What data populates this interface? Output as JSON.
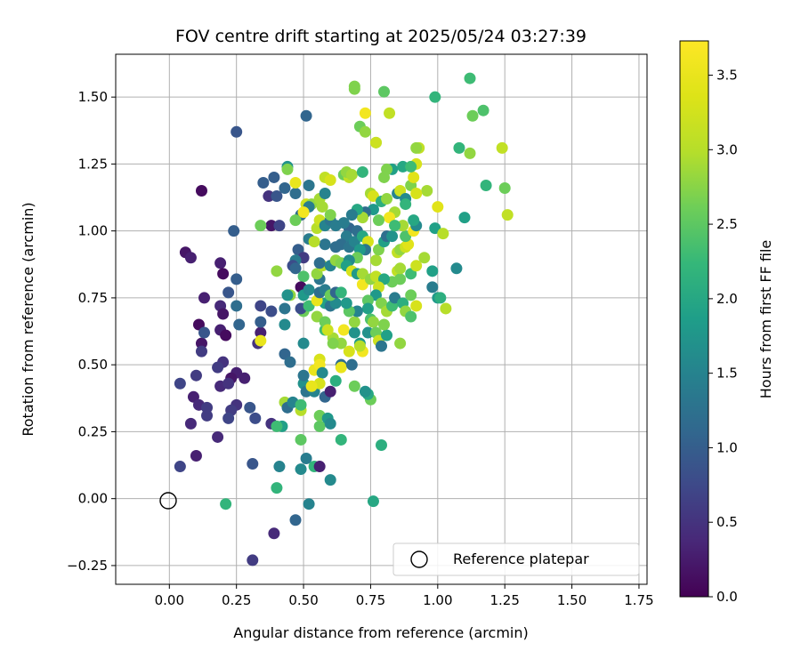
{
  "chart_data": {
    "type": "scatter",
    "title": "FOV centre drift starting at 2025/05/24 03:27:39",
    "xlabel": "Angular distance from reference (arcmin)",
    "ylabel": "Rotation from reference (arcmin)",
    "xlim": [
      -0.2,
      1.78
    ],
    "ylim": [
      -0.32,
      1.66
    ],
    "xticks": [
      0.0,
      0.25,
      0.5,
      0.75,
      1.0,
      1.25,
      1.5,
      1.75
    ],
    "xtick_labels": [
      "0.00",
      "0.25",
      "0.50",
      "0.75",
      "1.00",
      "1.25",
      "1.50",
      "1.75"
    ],
    "yticks": [
      -0.25,
      0.0,
      0.25,
      0.5,
      0.75,
      1.0,
      1.25,
      1.5
    ],
    "ytick_labels": [
      "−0.25",
      "0.00",
      "0.25",
      "0.50",
      "0.75",
      "1.00",
      "1.25",
      "1.50"
    ],
    "grid": true,
    "colorbar": {
      "label": "Hours from first FF file",
      "min": 0.0,
      "max": 3.73,
      "colormap": "viridis",
      "ticks": [
        0.0,
        0.5,
        1.0,
        1.5,
        2.0,
        2.5,
        3.0,
        3.5
      ],
      "tick_labels": [
        "0.0",
        "0.5",
        "1.0",
        "1.5",
        "2.0",
        "2.5",
        "3.0",
        "3.5"
      ]
    },
    "legend": {
      "placement": "lower-right",
      "entries": [
        {
          "label": "Reference platepar",
          "marker": "open-circle"
        }
      ]
    },
    "reference_point": {
      "x": 0.0,
      "y": 0.0
    },
    "points": [
      [
        0.12,
        1.15,
        0.1
      ],
      [
        0.06,
        0.92,
        0.2
      ],
      [
        0.08,
        0.9,
        0.3
      ],
      [
        0.19,
        0.88,
        0.3
      ],
      [
        0.2,
        0.84,
        0.1
      ],
      [
        0.13,
        0.75,
        0.3
      ],
      [
        0.19,
        0.72,
        0.4
      ],
      [
        0.2,
        0.69,
        0.2
      ],
      [
        0.11,
        0.65,
        0.1
      ],
      [
        0.19,
        0.63,
        0.3
      ],
      [
        0.21,
        0.61,
        0.1
      ],
      [
        0.12,
        0.58,
        0.2
      ],
      [
        0.12,
        0.55,
        0.6
      ],
      [
        0.2,
        0.51,
        0.5
      ],
      [
        0.18,
        0.49,
        0.6
      ],
      [
        0.04,
        0.43,
        0.7
      ],
      [
        0.09,
        0.38,
        0.3
      ],
      [
        0.11,
        0.35,
        0.4
      ],
      [
        0.14,
        0.31,
        0.6
      ],
      [
        0.08,
        0.28,
        0.4
      ],
      [
        0.19,
        0.42,
        0.4
      ],
      [
        0.18,
        0.23,
        0.4
      ],
      [
        0.1,
        0.16,
        0.3
      ],
      [
        0.04,
        0.12,
        0.7
      ],
      [
        0.1,
        0.46,
        0.6
      ],
      [
        0.13,
        0.62,
        0.9
      ],
      [
        0.14,
        0.34,
        0.6
      ],
      [
        0.25,
        0.47,
        0.3
      ],
      [
        0.23,
        0.45,
        0.2
      ],
      [
        0.22,
        0.43,
        0.5
      ],
      [
        0.25,
        0.35,
        0.5
      ],
      [
        0.28,
        0.45,
        0.3
      ],
      [
        0.23,
        0.33,
        0.6
      ],
      [
        0.22,
        0.3,
        0.7
      ],
      [
        0.3,
        0.34,
        0.9
      ],
      [
        0.32,
        0.3,
        0.8
      ],
      [
        0.25,
        1.37,
        0.9
      ],
      [
        0.24,
        1.0,
        1.0
      ],
      [
        0.22,
        0.77,
        0.9
      ],
      [
        0.25,
        0.82,
        1.0
      ],
      [
        0.25,
        0.72,
        1.2
      ],
      [
        0.26,
        0.65,
        1.1
      ],
      [
        0.33,
        0.58,
        0.5
      ],
      [
        0.34,
        0.62,
        0.3
      ],
      [
        0.34,
        0.59,
        3.5
      ],
      [
        0.34,
        0.66,
        1.0
      ],
      [
        0.34,
        0.72,
        0.7
      ],
      [
        0.38,
        0.7,
        0.8
      ],
      [
        0.31,
        0.13,
        0.9
      ],
      [
        0.38,
        0.28,
        0.5
      ],
      [
        0.39,
        -0.13,
        0.4
      ],
      [
        0.31,
        -0.23,
        0.6
      ],
      [
        0.35,
        1.18,
        1.0
      ],
      [
        0.37,
        1.13,
        0.5
      ],
      [
        0.39,
        1.2,
        1.0
      ],
      [
        0.4,
        1.13,
        0.9
      ],
      [
        0.38,
        1.02,
        0.2
      ],
      [
        0.34,
        1.02,
        2.6
      ],
      [
        0.41,
        1.02,
        0.7
      ],
      [
        0.43,
        1.16,
        1.1
      ],
      [
        0.44,
        1.24,
        1.7
      ],
      [
        0.44,
        1.23,
        2.7
      ],
      [
        0.47,
        1.14,
        1.2
      ],
      [
        0.47,
        1.18,
        3.5
      ],
      [
        0.51,
        1.43,
        1.1
      ],
      [
        0.52,
        1.17,
        1.3
      ],
      [
        0.51,
        1.1,
        3.2
      ],
      [
        0.53,
        1.1,
        2.8
      ],
      [
        0.52,
        1.09,
        1.4
      ],
      [
        0.49,
        1.06,
        1.2
      ],
      [
        0.5,
        1.07,
        3.6
      ],
      [
        0.47,
        1.04,
        2.6
      ],
      [
        0.48,
        0.93,
        1.0
      ],
      [
        0.5,
        0.9,
        0.6
      ],
      [
        0.47,
        0.89,
        1.4
      ],
      [
        0.46,
        0.87,
        0.8
      ],
      [
        0.47,
        0.86,
        1.1
      ],
      [
        0.52,
        0.97,
        1.4
      ],
      [
        0.5,
        0.83,
        2.4
      ],
      [
        0.4,
        0.85,
        2.8
      ],
      [
        0.45,
        0.76,
        2.8
      ],
      [
        0.44,
        0.76,
        1.7
      ],
      [
        0.49,
        0.79,
        0.1
      ],
      [
        0.5,
        0.76,
        1.8
      ],
      [
        0.5,
        0.7,
        2.6
      ],
      [
        0.49,
        0.71,
        0.8
      ],
      [
        0.52,
        0.72,
        2.3
      ],
      [
        0.52,
        0.78,
        1.6
      ],
      [
        0.43,
        0.71,
        1.3
      ],
      [
        0.43,
        0.65,
        1.6
      ],
      [
        0.43,
        0.54,
        1.1
      ],
      [
        0.45,
        0.51,
        1.2
      ],
      [
        0.5,
        0.58,
        1.6
      ],
      [
        0.43,
        0.36,
        2.9
      ],
      [
        0.44,
        0.34,
        1.2
      ],
      [
        0.46,
        0.36,
        1.5
      ],
      [
        0.49,
        0.33,
        3.0
      ],
      [
        0.5,
        0.43,
        1.7
      ],
      [
        0.5,
        0.46,
        1.3
      ],
      [
        0.51,
        0.4,
        1.3
      ],
      [
        0.49,
        0.35,
        2.3
      ],
      [
        0.42,
        0.27,
        1.9
      ],
      [
        0.4,
        0.27,
        2.3
      ],
      [
        0.49,
        0.22,
        2.5
      ],
      [
        0.51,
        0.15,
        1.4
      ],
      [
        0.49,
        0.11,
        1.6
      ],
      [
        0.54,
        0.12,
        2.2
      ],
      [
        0.41,
        0.12,
        1.5
      ],
      [
        0.4,
        0.04,
        2.2
      ],
      [
        0.47,
        -0.08,
        1.1
      ],
      [
        0.52,
        -0.02,
        1.5
      ],
      [
        0.56,
        0.12,
        0.3
      ],
      [
        0.6,
        0.07,
        1.6
      ],
      [
        0.56,
        0.27,
        2.5
      ],
      [
        0.56,
        0.31,
        2.6
      ],
      [
        0.58,
        0.38,
        1.1
      ],
      [
        0.59,
        0.3,
        1.8
      ],
      [
        0.56,
        0.52,
        3.3
      ],
      [
        0.54,
        0.48,
        3.5
      ],
      [
        0.56,
        0.5,
        3.6
      ],
      [
        0.57,
        0.47,
        1.6
      ],
      [
        0.54,
        0.4,
        1.5
      ],
      [
        0.56,
        0.43,
        3.3
      ],
      [
        0.53,
        0.42,
        3.5
      ],
      [
        0.6,
        0.4,
        0.3
      ],
      [
        0.6,
        0.28,
        1.6
      ],
      [
        0.62,
        0.44,
        2.1
      ],
      [
        0.64,
        0.5,
        1.2
      ],
      [
        0.64,
        0.49,
        3.5
      ],
      [
        0.64,
        0.22,
        2.2
      ],
      [
        0.68,
        0.5,
        1.2
      ],
      [
        0.67,
        0.55,
        3.3
      ],
      [
        0.64,
        0.58,
        2.8
      ],
      [
        0.65,
        0.63,
        3.6
      ],
      [
        0.61,
        0.6,
        2.9
      ],
      [
        0.58,
        0.63,
        2.3
      ],
      [
        0.55,
        0.68,
        2.8
      ],
      [
        0.58,
        0.66,
        2.6
      ],
      [
        0.59,
        0.63,
        3.2
      ],
      [
        0.61,
        0.58,
        2.7
      ],
      [
        0.58,
        0.73,
        1.9
      ],
      [
        0.6,
        0.72,
        1.3
      ],
      [
        0.62,
        0.73,
        1.6
      ],
      [
        0.55,
        0.74,
        3.5
      ],
      [
        0.56,
        0.77,
        1.2
      ],
      [
        0.58,
        0.78,
        1.4
      ],
      [
        0.6,
        0.76,
        2.6
      ],
      [
        0.62,
        0.77,
        1.1
      ],
      [
        0.64,
        0.77,
        2.2
      ],
      [
        0.56,
        0.82,
        1.3
      ],
      [
        0.55,
        0.84,
        2.8
      ],
      [
        0.57,
        0.87,
        3.0
      ],
      [
        0.56,
        0.88,
        1.2
      ],
      [
        0.6,
        0.87,
        1.5
      ],
      [
        0.62,
        0.89,
        2.8
      ],
      [
        0.64,
        0.88,
        2.7
      ],
      [
        0.62,
        0.94,
        1.2
      ],
      [
        0.58,
        0.95,
        1.3
      ],
      [
        0.54,
        0.96,
        3.0
      ],
      [
        0.55,
        1.01,
        3.0
      ],
      [
        0.56,
        1.04,
        3.2
      ],
      [
        0.58,
        1.02,
        1.5
      ],
      [
        0.6,
        1.04,
        1.3
      ],
      [
        0.62,
        1.02,
        1.4
      ],
      [
        0.6,
        1.06,
        2.7
      ],
      [
        0.57,
        1.09,
        2.9
      ],
      [
        0.56,
        1.12,
        2.9
      ],
      [
        0.58,
        1.14,
        1.5
      ],
      [
        0.58,
        1.2,
        3.1
      ],
      [
        0.6,
        1.19,
        3.3
      ],
      [
        0.65,
        1.21,
        2.6
      ],
      [
        0.67,
        1.2,
        3.1
      ],
      [
        0.66,
        1.22,
        2.8
      ],
      [
        0.68,
        1.21,
        2.9
      ],
      [
        0.72,
        1.22,
        2.2
      ],
      [
        0.69,
        1.53,
        2.7
      ],
      [
        0.69,
        1.54,
        2.7
      ],
      [
        0.71,
        1.39,
        2.6
      ],
      [
        0.73,
        1.44,
        3.6
      ],
      [
        0.73,
        1.37,
        2.8
      ],
      [
        0.77,
        1.33,
        2.7
      ],
      [
        0.77,
        1.33,
        3.2
      ],
      [
        0.8,
        1.52,
        2.5
      ],
      [
        0.82,
        1.44,
        3.1
      ],
      [
        0.83,
        1.23,
        1.9
      ],
      [
        0.8,
        1.2,
        2.7
      ],
      [
        0.81,
        1.23,
        2.7
      ],
      [
        0.75,
        1.14,
        2.9
      ],
      [
        0.76,
        1.13,
        3.3
      ],
      [
        0.79,
        1.11,
        2.1
      ],
      [
        0.81,
        1.12,
        2.8
      ],
      [
        0.85,
        1.14,
        1.5
      ],
      [
        0.87,
        1.24,
        2.0
      ],
      [
        0.86,
        1.15,
        3.2
      ],
      [
        0.88,
        1.12,
        1.6
      ],
      [
        0.9,
        1.17,
        2.7
      ],
      [
        0.91,
        1.2,
        3.4
      ],
      [
        0.92,
        1.25,
        3.3
      ],
      [
        0.93,
        1.31,
        3.1
      ],
      [
        0.92,
        1.31,
        2.8
      ],
      [
        0.9,
        1.24,
        2.3
      ],
      [
        0.96,
        1.15,
        2.9
      ],
      [
        0.92,
        1.14,
        3.3
      ],
      [
        0.88,
        1.1,
        2.2
      ],
      [
        0.84,
        1.07,
        2.9
      ],
      [
        0.82,
        1.05,
        3.6
      ],
      [
        0.78,
        1.04,
        2.6
      ],
      [
        0.76,
        1.08,
        1.8
      ],
      [
        0.73,
        1.07,
        1.2
      ],
      [
        0.72,
        1.05,
        2.9
      ],
      [
        0.7,
        1.08,
        2.0
      ],
      [
        0.68,
        1.06,
        1.4
      ],
      [
        0.67,
        1.01,
        1.1
      ],
      [
        0.65,
        1.03,
        1.4
      ],
      [
        0.66,
        0.98,
        1.4
      ],
      [
        0.64,
        0.95,
        1.2
      ],
      [
        0.67,
        0.94,
        1.3
      ],
      [
        0.69,
        0.96,
        1.5
      ],
      [
        0.7,
        1.0,
        1.2
      ],
      [
        0.72,
        0.98,
        2.0
      ],
      [
        0.74,
        0.96,
        3.3
      ],
      [
        0.73,
        0.93,
        1.3
      ],
      [
        0.71,
        0.93,
        1.8
      ],
      [
        0.7,
        0.9,
        2.6
      ],
      [
        0.67,
        0.89,
        1.6
      ],
      [
        0.66,
        0.87,
        1.9
      ],
      [
        0.68,
        0.85,
        3.3
      ],
      [
        0.7,
        0.84,
        1.8
      ],
      [
        0.72,
        0.8,
        3.6
      ],
      [
        0.72,
        0.84,
        2.9
      ],
      [
        0.75,
        0.82,
        2.8
      ],
      [
        0.77,
        0.83,
        3.1
      ],
      [
        0.77,
        0.89,
        2.9
      ],
      [
        0.78,
        0.93,
        2.7
      ],
      [
        0.8,
        0.96,
        1.9
      ],
      [
        0.81,
        0.98,
        1.2
      ],
      [
        0.83,
        0.98,
        1.7
      ],
      [
        0.85,
        0.92,
        3.1
      ],
      [
        0.86,
        0.93,
        2.8
      ],
      [
        0.88,
        0.94,
        3.2
      ],
      [
        0.89,
        0.95,
        3.4
      ],
      [
        0.88,
        0.98,
        2.4
      ],
      [
        0.91,
        1.0,
        3.6
      ],
      [
        0.92,
        1.02,
        1.6
      ],
      [
        0.91,
        1.04,
        2.0
      ],
      [
        0.87,
        1.02,
        2.9
      ],
      [
        0.84,
        1.02,
        2.3
      ],
      [
        0.85,
        0.85,
        3.1
      ],
      [
        0.86,
        0.82,
        2.6
      ],
      [
        0.86,
        0.86,
        2.9
      ],
      [
        0.83,
        0.81,
        2.6
      ],
      [
        0.8,
        0.82,
        2.0
      ],
      [
        0.78,
        0.79,
        3.2
      ],
      [
        0.77,
        0.76,
        1.8
      ],
      [
        0.79,
        0.73,
        2.7
      ],
      [
        0.81,
        0.7,
        2.9
      ],
      [
        0.83,
        0.72,
        2.3
      ],
      [
        0.84,
        0.75,
        1.4
      ],
      [
        0.87,
        0.73,
        2.1
      ],
      [
        0.88,
        0.7,
        2.8
      ],
      [
        0.9,
        0.68,
        2.4
      ],
      [
        0.92,
        0.72,
        3.3
      ],
      [
        0.9,
        0.76,
        2.6
      ],
      [
        0.9,
        0.84,
        2.3
      ],
      [
        0.92,
        0.87,
        3.2
      ],
      [
        0.95,
        0.9,
        2.9
      ],
      [
        0.98,
        0.85,
        1.9
      ],
      [
        0.98,
        0.79,
        1.4
      ],
      [
        1.0,
        0.75,
        1.8
      ],
      [
        1.01,
        0.75,
        2.1
      ],
      [
        1.03,
        0.71,
        3.0
      ],
      [
        1.0,
        1.09,
        3.4
      ],
      [
        0.99,
        1.01,
        1.9
      ],
      [
        1.02,
        0.99,
        3.0
      ],
      [
        1.07,
        0.86,
        1.6
      ],
      [
        0.99,
        1.5,
        2.2
      ],
      [
        1.08,
        1.31,
        2.2
      ],
      [
        1.12,
        1.57,
        2.3
      ],
      [
        1.13,
        1.43,
        2.6
      ],
      [
        1.12,
        1.29,
        2.8
      ],
      [
        1.1,
        1.05,
        1.9
      ],
      [
        1.17,
        1.45,
        2.4
      ],
      [
        1.18,
        1.17,
        2.2
      ],
      [
        1.24,
        1.31,
        3.1
      ],
      [
        1.25,
        1.16,
        2.6
      ],
      [
        1.26,
        1.06,
        3.1
      ],
      [
        0.74,
        0.74,
        2.5
      ],
      [
        0.74,
        0.71,
        1.9
      ],
      [
        0.75,
        0.67,
        2.4
      ],
      [
        0.76,
        0.66,
        2.8
      ],
      [
        0.74,
        0.62,
        1.7
      ],
      [
        0.77,
        0.62,
        2.6
      ],
      [
        0.78,
        0.59,
        3.2
      ],
      [
        0.79,
        0.57,
        1.3
      ],
      [
        0.71,
        0.58,
        1.8
      ],
      [
        0.72,
        0.55,
        3.6
      ],
      [
        0.71,
        0.57,
        3.0
      ],
      [
        0.69,
        0.62,
        1.7
      ],
      [
        0.69,
        0.66,
        2.8
      ],
      [
        0.7,
        0.7,
        1.5
      ],
      [
        0.67,
        0.7,
        2.5
      ],
      [
        0.66,
        0.73,
        1.8
      ],
      [
        0.86,
        0.58,
        2.8
      ],
      [
        0.81,
        0.61,
        1.9
      ],
      [
        0.8,
        0.65,
        2.7
      ],
      [
        0.75,
        0.37,
        2.6
      ],
      [
        0.74,
        0.39,
        2.0
      ],
      [
        0.73,
        0.4,
        1.7
      ],
      [
        0.69,
        0.42,
        2.6
      ],
      [
        0.79,
        0.2,
        2.1
      ],
      [
        0.76,
        -0.01,
        2.0
      ],
      [
        0.21,
        -0.02,
        2.2
      ]
    ]
  }
}
